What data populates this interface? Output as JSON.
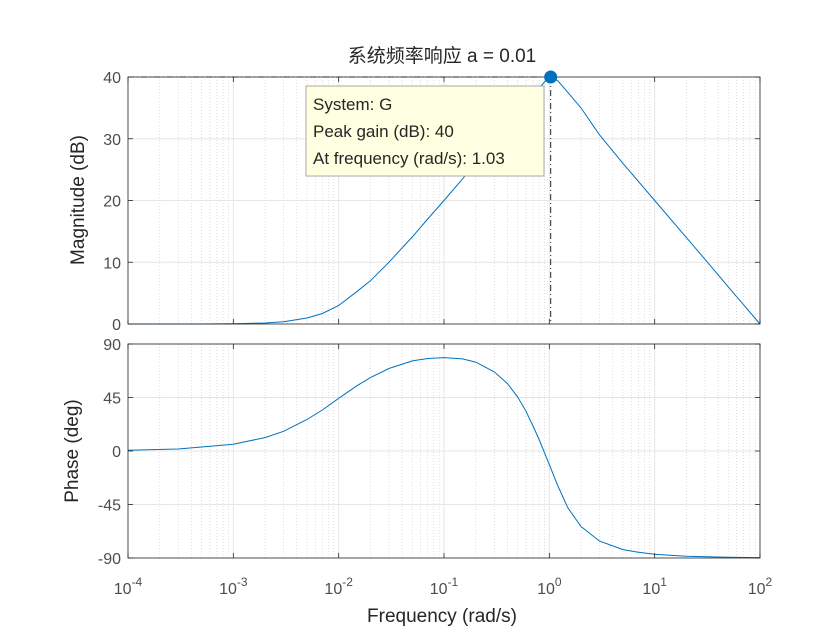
{
  "colors": {
    "line": "#0072bd",
    "marker": "#0072bd",
    "grid_major": "#e6e6e6",
    "grid_minor": "#cfcfcf",
    "axes": "#262626",
    "datatip_bg": "#ffffe1",
    "datatip_border": "#a8a8a8"
  },
  "chart_data": [
    {
      "type": "line",
      "title": "系统频率响应 a = 0.01",
      "xlabel": "",
      "ylabel": "Magnitude (dB)",
      "xscale": "log",
      "xlim": [
        0.0001,
        100
      ],
      "ylim": [
        0,
        40
      ],
      "yticks": [
        "0",
        "10",
        "20",
        "30",
        "40"
      ],
      "grid": true,
      "series": [
        {
          "x": [
            0.0001,
            0.0002,
            0.0005,
            0.001,
            0.002,
            0.003,
            0.005,
            0.007,
            0.01,
            0.015,
            0.02,
            0.03,
            0.05,
            0.07,
            0.1,
            0.15,
            0.2,
            0.3,
            0.5,
            0.7,
            0.9,
            1.03,
            1.2,
            1.5,
            2,
            3,
            5,
            7,
            10,
            20,
            30,
            50,
            70,
            100
          ],
          "y": [
            0.0,
            0.0,
            0.0,
            0.04,
            0.17,
            0.37,
            0.97,
            1.7,
            3.0,
            5.3,
            7.0,
            10.0,
            14.1,
            17.0,
            20.0,
            23.5,
            26.0,
            29.5,
            34.0,
            37.0,
            39.2,
            40.0,
            39.4,
            37.5,
            35.0,
            30.6,
            26.0,
            23.1,
            20.0,
            14.0,
            10.5,
            6.0,
            3.1,
            0.0
          ]
        }
      ],
      "datatip": {
        "lines": [
          "System: G",
          "Peak gain (dB): 40",
          "At frequency (rad/s): 1.03"
        ],
        "x": 1.03,
        "y": 40
      }
    },
    {
      "type": "line",
      "xlabel": "Frequency  (rad/s)",
      "ylabel": "Phase (deg)",
      "xscale": "log",
      "xlim": [
        0.0001,
        100
      ],
      "ylim": [
        -90,
        90
      ],
      "yticks": [
        "-90",
        "-45",
        "0",
        "45",
        "90"
      ],
      "xticks": [
        {
          "base": "10",
          "exp": "-4"
        },
        {
          "base": "10",
          "exp": "-3"
        },
        {
          "base": "10",
          "exp": "-2"
        },
        {
          "base": "10",
          "exp": "-1"
        },
        {
          "base": "10",
          "exp": "0"
        },
        {
          "base": "10",
          "exp": "1"
        },
        {
          "base": "10",
          "exp": "2"
        }
      ],
      "grid": true,
      "series": [
        {
          "x": [
            0.0001,
            0.0003,
            0.001,
            0.002,
            0.003,
            0.005,
            0.007,
            0.01,
            0.015,
            0.02,
            0.03,
            0.05,
            0.07,
            0.1,
            0.15,
            0.2,
            0.3,
            0.4,
            0.5,
            0.6,
            0.7,
            0.8,
            1.0,
            1.2,
            1.5,
            2,
            3,
            5,
            7,
            10,
            20,
            50,
            100
          ],
          "y": [
            0.6,
            1.7,
            5.7,
            11.3,
            16.6,
            26.5,
            34.5,
            44.3,
            55.0,
            61.7,
            69.4,
            75.8,
            77.8,
            78.6,
            77.5,
            74.8,
            66.5,
            56.8,
            45.5,
            33.4,
            21.0,
            9.7,
            -11.4,
            -29.0,
            -47.9,
            -63.5,
            -75.8,
            -82.9,
            -85.2,
            -86.8,
            -88.6,
            -89.4,
            -89.7
          ]
        }
      ]
    }
  ]
}
